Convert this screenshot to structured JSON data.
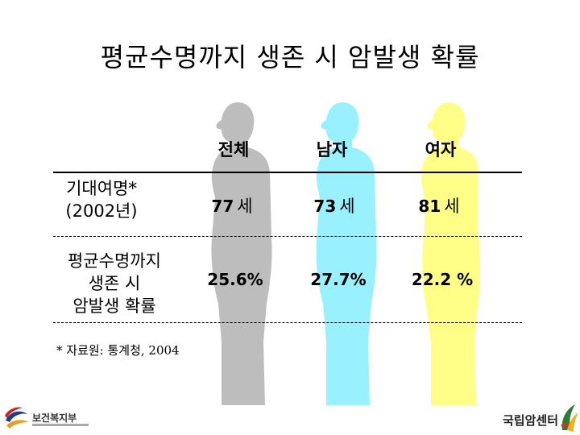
{
  "title": "평균수명까지 생존 시 암발생 확률",
  "columns": [
    {
      "label": "전체",
      "color": "#bdbdbd"
    },
    {
      "label": "남자",
      "color": "#99f0ff"
    },
    {
      "label": "여자",
      "color": "#ffff88"
    }
  ],
  "rows": [
    {
      "label_line1": "기대여명*",
      "label_line2": "(2002년)",
      "cells": [
        {
          "value": "77",
          "unit": "세"
        },
        {
          "value": "73",
          "unit": "세"
        },
        {
          "value": "81",
          "unit": "세"
        }
      ]
    },
    {
      "label_line1": "평균수명까지",
      "label_line2": "생존 시",
      "label_line3": "암발생 확률",
      "cells": [
        {
          "value": "25.6%"
        },
        {
          "value": "27.7%"
        },
        {
          "value": "22.2 %"
        }
      ]
    }
  ],
  "footnote": "* 자료원: 통계청, 2004",
  "logos": {
    "left_text": "보건복지부",
    "right_text": "국립암센터"
  }
}
